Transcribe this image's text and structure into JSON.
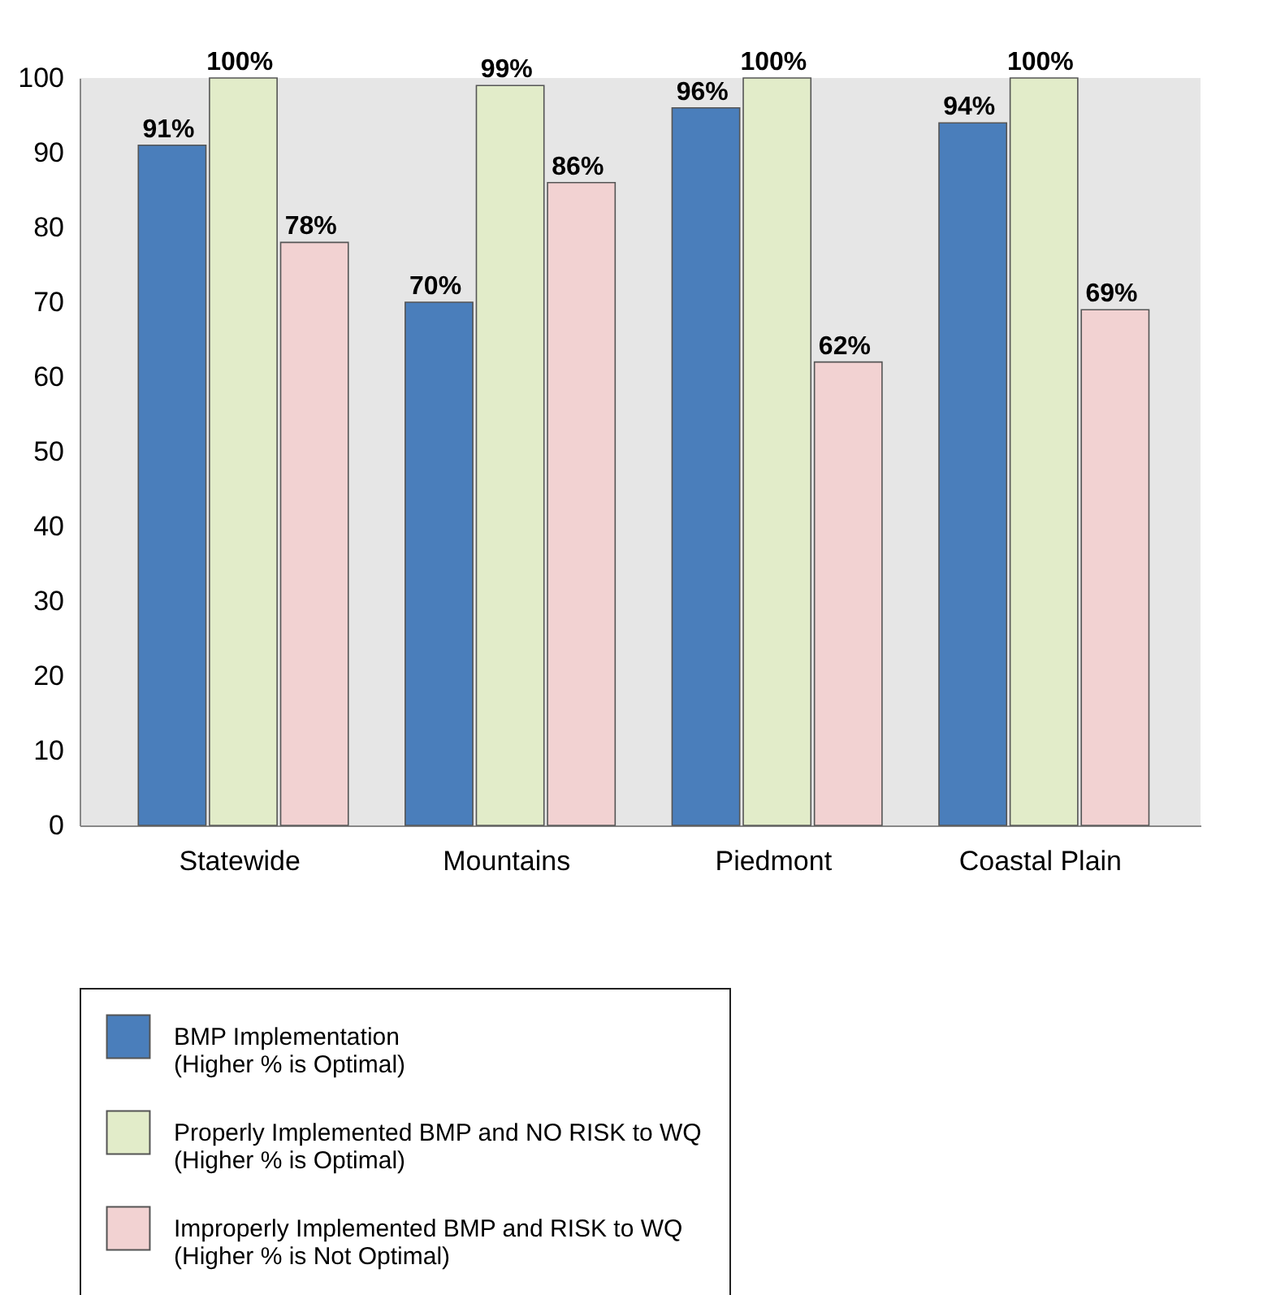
{
  "chart_data": {
    "type": "bar",
    "categories": [
      "Statewide",
      "Mountains",
      "Piedmont",
      "Coastal Plain"
    ],
    "series": [
      {
        "name": "BMP Implementation\n(Higher % is Optimal)",
        "color": "#4a7ebb",
        "values": [
          91,
          70,
          96,
          94
        ],
        "value_labels": [
          "91%",
          "70%",
          "96%",
          "94%"
        ]
      },
      {
        "name": "Properly Implemented BMP and NO RISK to WQ\n(Higher % is Optimal)",
        "color": "#e2ecc9",
        "values": [
          100,
          99,
          100,
          100
        ],
        "value_labels": [
          "100%",
          "99%",
          "100%",
          "100%"
        ]
      },
      {
        "name": "Improperly Implemented BMP and RISK to WQ\n(Higher % is Not Optimal)",
        "color": "#f2d2d2",
        "values": [
          78,
          86,
          62,
          69
        ],
        "value_labels": [
          "78%",
          "86%",
          "62%",
          "69%"
        ]
      }
    ],
    "ylim": [
      0,
      100
    ],
    "yticks": [
      0,
      10,
      20,
      30,
      40,
      50,
      60,
      70,
      80,
      90,
      100
    ],
    "grid": false,
    "legend": "bottom"
  }
}
